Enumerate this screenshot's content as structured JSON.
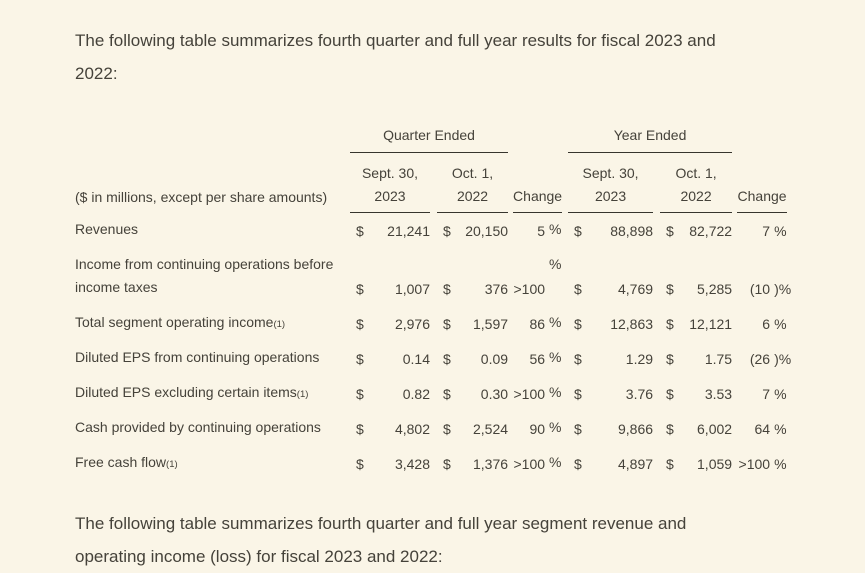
{
  "page": {
    "background": "#faf5e7",
    "text_color": "#45423a",
    "rule_color": "#37352d"
  },
  "paragraphs": {
    "intro": {
      "line1": "The following table summarizes fourth quarter and full year results for fiscal 2023 and",
      "line2": "2022:"
    },
    "closing": {
      "line1": "The following table summarizes fourth quarter and full year segment revenue and",
      "line2": "operating income (loss) for fiscal 2023 and 2022:"
    }
  },
  "table": {
    "caption": "($ in millions, except per share amounts)",
    "currency_symbol": "$",
    "group_headers": {
      "quarter": "Quarter Ended",
      "year": "Year Ended"
    },
    "subheaders": {
      "q_col1_line1": "Sept. 30,",
      "q_col1_line2": "2023",
      "q_col2_line1": "Oct. 1,",
      "q_col2_line2": "2022",
      "q_change": "Change",
      "y_col1_line1": "Sept. 30,",
      "y_col1_line2": "2023",
      "y_col2_line1": "Oct. 1,",
      "y_col2_line2": "2022",
      "y_change": "Change"
    },
    "rows": [
      {
        "label": "Revenues",
        "footnote": "",
        "q2023": "21,241",
        "q2022": "20,150",
        "q_change": "5",
        "q_pct": "%",
        "y2023": "88,898",
        "y2022": "82,722",
        "y_change": "7",
        "y_pct": "%"
      },
      {
        "label": "Income from continuing operations before income taxes",
        "footnote": "",
        "q2023": "1,007",
        "q2022": "376",
        "q_change": ">100",
        "q_pct": "%",
        "y2023": "4,769",
        "y2022": "5,285",
        "y_change": "(10",
        "y_pct": ")%"
      },
      {
        "label": "Total segment operating income",
        "footnote": "(1)",
        "q2023": "2,976",
        "q2022": "1,597",
        "q_change": "86",
        "q_pct": "%",
        "y2023": "12,863",
        "y2022": "12,121",
        "y_change": "6",
        "y_pct": "%"
      },
      {
        "label": "Diluted EPS from continuing operations",
        "footnote": "",
        "q2023": "0.14",
        "q2022": "0.09",
        "q_change": "56",
        "q_pct": "%",
        "y2023": "1.29",
        "y2022": "1.75",
        "y_change": "(26",
        "y_pct": ")%"
      },
      {
        "label": "Diluted EPS excluding certain items",
        "footnote": "(1)",
        "q2023": "0.82",
        "q2022": "0.30",
        "q_change": ">100",
        "q_pct": "%",
        "y2023": "3.76",
        "y2022": "3.53",
        "y_change": "7",
        "y_pct": "%"
      },
      {
        "label": "Cash provided by continuing operations",
        "footnote": "",
        "q2023": "4,802",
        "q2022": "2,524",
        "q_change": "90",
        "q_pct": "%",
        "y2023": "9,866",
        "y2022": "6,002",
        "y_change": "64",
        "y_pct": "%"
      },
      {
        "label": "Free cash flow",
        "footnote": "(1)",
        "q2023": "3,428",
        "q2022": "1,376",
        "q_change": ">100",
        "q_pct": "%",
        "y2023": "4,897",
        "y2022": "1,059",
        "y_change": ">100",
        "y_pct": "%"
      }
    ]
  }
}
